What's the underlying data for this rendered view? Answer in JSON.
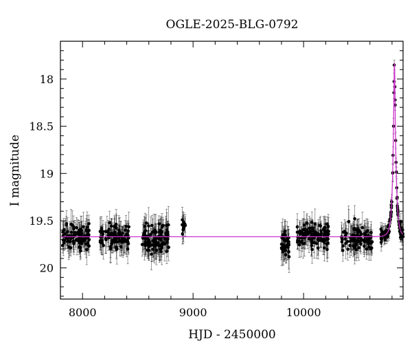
{
  "chart_data": {
    "type": "scatter",
    "title": "OGLE-2025-BLG-0792",
    "xlabel": "HJD - 2450000",
    "ylabel": "I magnitude",
    "xlim": [
      7800,
      10900
    ],
    "ylim": [
      20.33,
      17.6
    ],
    "y_inverted": true,
    "xticks": [
      8000,
      9000,
      10000
    ],
    "yticks": [
      18,
      18.5,
      19,
      19.5,
      20
    ],
    "ytick_labels": [
      "18",
      "18.5",
      "19",
      "19.5",
      "20"
    ],
    "grid": false,
    "colors": {
      "data": "#000000",
      "model": "#cc33cc"
    },
    "baseline_mag": 19.67,
    "peak": {
      "t0": 10822,
      "mag": 17.93
    },
    "series": [
      {
        "kind": "observations",
        "segments": [
          {
            "range": [
              7820,
              8060
            ],
            "count": 95,
            "mag_mean": 19.67,
            "scatter": 0.09,
            "err": 0.12
          },
          {
            "range": [
              8160,
              8420
            ],
            "count": 100,
            "mag_mean": 19.67,
            "scatter": 0.09,
            "err": 0.12
          },
          {
            "range": [
              8540,
              8780
            ],
            "count": 110,
            "mag_mean": 19.7,
            "scatter": 0.11,
            "err": 0.14
          },
          {
            "range": [
              8900,
              8930
            ],
            "count": 10,
            "mag_mean": 19.52,
            "scatter": 0.08,
            "err": 0.11
          },
          {
            "range": [
              9800,
              9870
            ],
            "count": 35,
            "mag_mean": 19.75,
            "scatter": 0.1,
            "err": 0.13
          },
          {
            "range": [
              9940,
              10230
            ],
            "count": 110,
            "mag_mean": 19.67,
            "scatter": 0.09,
            "err": 0.12
          },
          {
            "range": [
              10340,
              10620
            ],
            "count": 100,
            "mag_mean": 19.68,
            "scatter": 0.1,
            "err": 0.12
          },
          {
            "range": [
              10700,
              10900
            ],
            "count": 95,
            "mag_mean": null,
            "scatter": 0.05,
            "err": 0.07
          }
        ]
      },
      {
        "kind": "model",
        "type": "line",
        "u0": 0.186,
        "tE": 28
      }
    ]
  }
}
